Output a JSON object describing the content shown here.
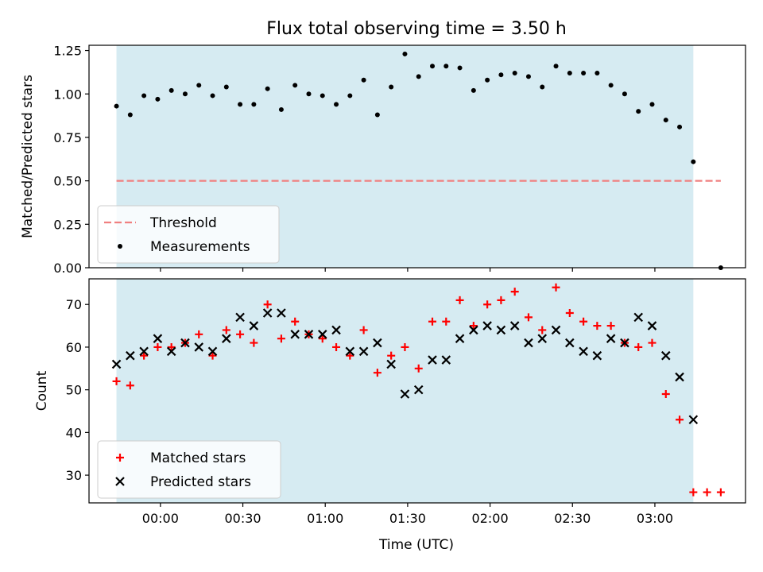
{
  "chart_data": [
    {
      "type": "scatter",
      "title": "Flux total observing time = 3.50 h",
      "xlabel": "",
      "ylabel": "Matched/Predicted stars",
      "xlim_min": [
        -26,
        213
      ],
      "ylim": [
        0,
        1.28
      ],
      "yticks": [
        0.0,
        0.25,
        0.5,
        0.75,
        1.0,
        1.25
      ],
      "ytick_labels": [
        "0.00",
        "0.25",
        "0.50",
        "0.75",
        "1.00",
        "1.25"
      ],
      "shaded_region_min": [
        -16,
        194
      ],
      "threshold": {
        "name": "Threshold",
        "value": 0.5,
        "x_range_min": [
          -16,
          204
        ],
        "color": "#f08080"
      },
      "legend": {
        "position": "lower-left",
        "entries": [
          "Threshold",
          "Measurements"
        ]
      },
      "series": [
        {
          "name": "Measurements",
          "color": "#000000",
          "marker": "dot",
          "x_min": [
            -16,
            -11,
            -6,
            -1,
            4,
            9,
            14,
            19,
            24,
            29,
            34,
            39,
            44,
            49,
            54,
            59,
            64,
            69,
            74,
            79,
            84,
            89,
            94,
            99,
            104,
            109,
            114,
            119,
            124,
            129,
            134,
            139,
            144,
            149,
            154,
            159,
            164,
            169,
            174,
            179,
            184,
            189,
            194,
            204
          ],
          "y": [
            0.93,
            0.88,
            0.99,
            0.97,
            1.02,
            1.0,
            1.05,
            0.99,
            1.04,
            0.94,
            0.94,
            1.03,
            0.91,
            1.05,
            1.0,
            0.99,
            0.94,
            0.99,
            1.08,
            0.88,
            1.04,
            1.23,
            1.1,
            1.16,
            1.16,
            1.15,
            1.02,
            1.08,
            1.11,
            1.12,
            1.1,
            1.04,
            1.16,
            1.12,
            1.12,
            1.12,
            1.05,
            1.0,
            0.9,
            0.94,
            0.85,
            0.81,
            0.61,
            0.0
          ]
        }
      ]
    },
    {
      "type": "scatter",
      "title": "",
      "xlabel": "Time (UTC)",
      "ylabel": "Count",
      "xlim_min": [
        -26,
        213
      ],
      "ylim": [
        23.5,
        76
      ],
      "yticks": [
        30,
        40,
        50,
        60,
        70
      ],
      "ytick_labels": [
        "30",
        "40",
        "50",
        "60",
        "70"
      ],
      "xticks_min": [
        0,
        30,
        60,
        90,
        120,
        150,
        180
      ],
      "xtick_labels": [
        "00:00",
        "00:30",
        "01:00",
        "01:30",
        "02:00",
        "02:30",
        "03:00"
      ],
      "shaded_region_min": [
        -16,
        194
      ],
      "legend": {
        "position": "lower-left",
        "entries": [
          "Matched stars",
          "Predicted stars"
        ]
      },
      "series": [
        {
          "name": "Matched stars",
          "color": "#ff0000",
          "marker": "plus",
          "x_min": [
            -16,
            -11,
            -6,
            -1,
            4,
            9,
            14,
            19,
            24,
            29,
            34,
            39,
            44,
            49,
            54,
            59,
            64,
            69,
            74,
            79,
            84,
            89,
            94,
            99,
            104,
            109,
            114,
            119,
            124,
            129,
            134,
            139,
            144,
            149,
            154,
            159,
            164,
            169,
            174,
            179,
            184,
            189,
            194,
            199,
            204
          ],
          "y": [
            52,
            51,
            58,
            60,
            60,
            61,
            63,
            58,
            64,
            63,
            61,
            70,
            62,
            66,
            63,
            62,
            60,
            58,
            64,
            54,
            58,
            60,
            55,
            66,
            66,
            71,
            65,
            70,
            71,
            73,
            67,
            64,
            74,
            68,
            66,
            65,
            65,
            61,
            60,
            61,
            49,
            43,
            26,
            26,
            26
          ]
        },
        {
          "name": "Predicted stars",
          "color": "#000000",
          "marker": "x",
          "x_min": [
            -16,
            -11,
            -6,
            -1,
            4,
            9,
            14,
            19,
            24,
            29,
            34,
            39,
            44,
            49,
            54,
            59,
            64,
            69,
            74,
            79,
            84,
            89,
            94,
            99,
            104,
            109,
            114,
            119,
            124,
            129,
            134,
            139,
            144,
            149,
            154,
            159,
            164,
            169,
            174,
            179,
            184,
            189,
            194
          ],
          "y": [
            56,
            58,
            59,
            62,
            59,
            61,
            60,
            59,
            62,
            67,
            65,
            68,
            68,
            63,
            63,
            63,
            64,
            59,
            59,
            61,
            56,
            49,
            50,
            57,
            57,
            62,
            64,
            65,
            64,
            65,
            61,
            62,
            64,
            61,
            59,
            58,
            62,
            61,
            67,
            65,
            58,
            53,
            43
          ]
        }
      ]
    }
  ]
}
